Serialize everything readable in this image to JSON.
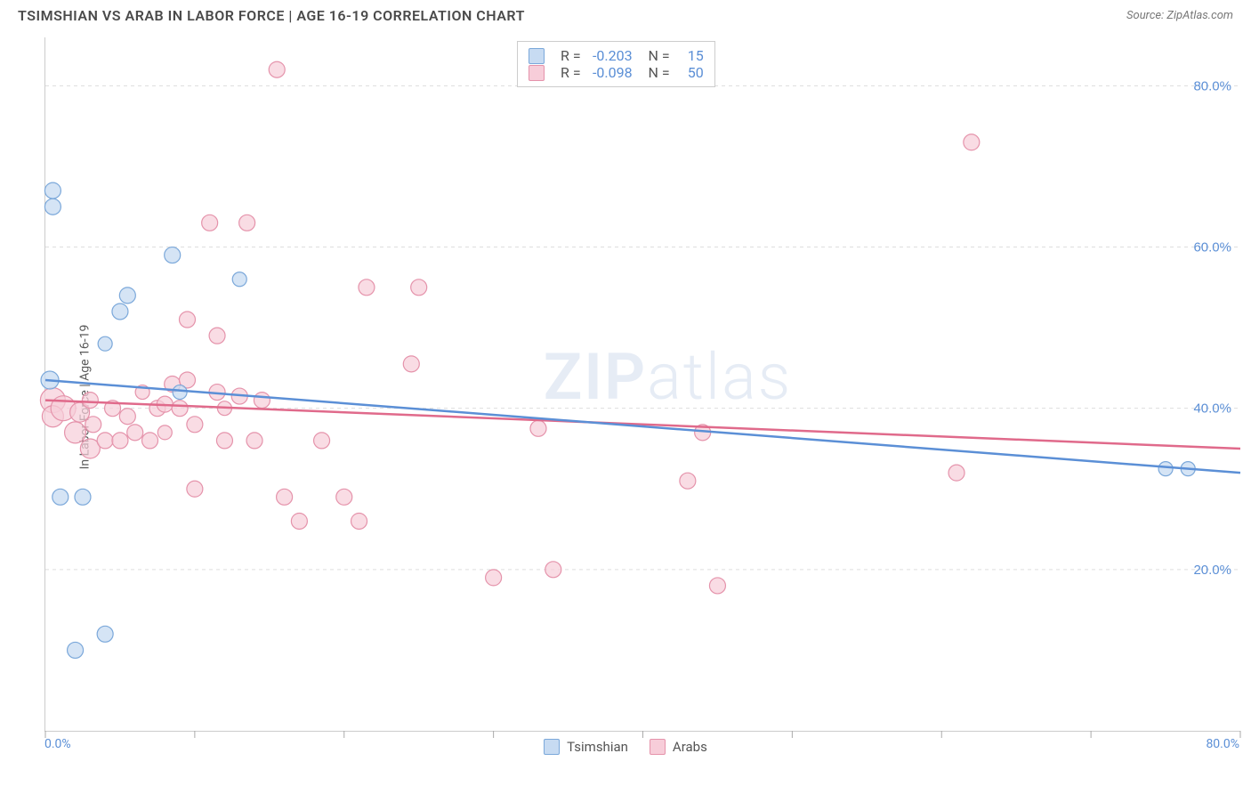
{
  "title": "TSIMSHIAN VS ARAB IN LABOR FORCE | AGE 16-19 CORRELATION CHART",
  "source": "Source: ZipAtlas.com",
  "ylabel": "In Labor Force | Age 16-19",
  "watermark": {
    "bold": "ZIP",
    "light": "atlas"
  },
  "chart": {
    "type": "scatter",
    "xlim": [
      0,
      80
    ],
    "ylim": [
      0,
      86
    ],
    "xticks": [
      0,
      10,
      20,
      30,
      40,
      50,
      60,
      70,
      80
    ],
    "xtick_labels": {
      "0": "0.0%",
      "80": "80.0%"
    },
    "yticks": [
      20,
      40,
      60,
      80
    ],
    "ytick_labels": [
      "20.0%",
      "40.0%",
      "60.0%",
      "80.0%"
    ],
    "grid_color": "#dddddd",
    "tick_color": "#aaaaaa",
    "axis_color": "#cccccc",
    "yaxis_label_color": "#5b8fd6",
    "xaxis_label_color": "#5b8fd6",
    "background_color": "#ffffff"
  },
  "series": {
    "tsimshian": {
      "label": "Tsimshian",
      "fill": "#c7dbf2",
      "stroke": "#7ba8da",
      "line_color": "#5b8fd6",
      "opacity": 0.75,
      "R": "-0.203",
      "N": "15",
      "points": [
        {
          "x": 0.5,
          "y": 67,
          "r": 9
        },
        {
          "x": 0.5,
          "y": 65,
          "r": 9
        },
        {
          "x": 0.3,
          "y": 43.5,
          "r": 10
        },
        {
          "x": 1.0,
          "y": 29,
          "r": 9
        },
        {
          "x": 2.5,
          "y": 29,
          "r": 9
        },
        {
          "x": 2.0,
          "y": 10,
          "r": 9
        },
        {
          "x": 4.0,
          "y": 12,
          "r": 9
        },
        {
          "x": 4.0,
          "y": 48,
          "r": 8
        },
        {
          "x": 5.0,
          "y": 52,
          "r": 9
        },
        {
          "x": 5.5,
          "y": 54,
          "r": 9
        },
        {
          "x": 8.5,
          "y": 59,
          "r": 9
        },
        {
          "x": 13.0,
          "y": 56,
          "r": 8
        },
        {
          "x": 9.0,
          "y": 42,
          "r": 8
        },
        {
          "x": 75.0,
          "y": 32.5,
          "r": 8
        },
        {
          "x": 76.5,
          "y": 32.5,
          "r": 8
        }
      ],
      "trend": {
        "x1": 0,
        "y1": 43.5,
        "x2": 80,
        "y2": 32
      }
    },
    "arabs": {
      "label": "Arabs",
      "fill": "#f7cdd9",
      "stroke": "#e593ab",
      "line_color": "#e06a8b",
      "opacity": 0.7,
      "R": "-0.098",
      "N": "50",
      "points": [
        {
          "x": 0.5,
          "y": 41,
          "r": 14
        },
        {
          "x": 0.5,
          "y": 39,
          "r": 12
        },
        {
          "x": 1.2,
          "y": 40,
          "r": 14
        },
        {
          "x": 2.0,
          "y": 37,
          "r": 12
        },
        {
          "x": 2.3,
          "y": 39.5,
          "r": 11
        },
        {
          "x": 3.0,
          "y": 41,
          "r": 9
        },
        {
          "x": 3.2,
          "y": 38,
          "r": 9
        },
        {
          "x": 3.0,
          "y": 35,
          "r": 11
        },
        {
          "x": 4.0,
          "y": 36,
          "r": 9
        },
        {
          "x": 4.5,
          "y": 40,
          "r": 9
        },
        {
          "x": 5.5,
          "y": 39,
          "r": 9
        },
        {
          "x": 5.0,
          "y": 36,
          "r": 9
        },
        {
          "x": 6.0,
          "y": 37,
          "r": 9
        },
        {
          "x": 6.5,
          "y": 42,
          "r": 8
        },
        {
          "x": 7.0,
          "y": 36,
          "r": 9
        },
        {
          "x": 7.5,
          "y": 40,
          "r": 9
        },
        {
          "x": 8.0,
          "y": 40.5,
          "r": 9
        },
        {
          "x": 8.5,
          "y": 43,
          "r": 9
        },
        {
          "x": 8.0,
          "y": 37,
          "r": 8
        },
        {
          "x": 9.0,
          "y": 40,
          "r": 9
        },
        {
          "x": 9.5,
          "y": 43.5,
          "r": 9
        },
        {
          "x": 10.0,
          "y": 38,
          "r": 9
        },
        {
          "x": 10.0,
          "y": 30,
          "r": 9
        },
        {
          "x": 9.5,
          "y": 51,
          "r": 9
        },
        {
          "x": 11.0,
          "y": 63,
          "r": 9
        },
        {
          "x": 11.5,
          "y": 42,
          "r": 9
        },
        {
          "x": 12.0,
          "y": 36,
          "r": 9
        },
        {
          "x": 12.0,
          "y": 40,
          "r": 8
        },
        {
          "x": 11.5,
          "y": 49,
          "r": 9
        },
        {
          "x": 13.5,
          "y": 63,
          "r": 9
        },
        {
          "x": 13.0,
          "y": 41.5,
          "r": 9
        },
        {
          "x": 14.0,
          "y": 36,
          "r": 9
        },
        {
          "x": 14.5,
          "y": 41,
          "r": 9
        },
        {
          "x": 15.5,
          "y": 82,
          "r": 9
        },
        {
          "x": 16.0,
          "y": 29,
          "r": 9
        },
        {
          "x": 17.0,
          "y": 26,
          "r": 9
        },
        {
          "x": 18.5,
          "y": 36,
          "r": 9
        },
        {
          "x": 20.0,
          "y": 29,
          "r": 9
        },
        {
          "x": 21.0,
          "y": 26,
          "r": 9
        },
        {
          "x": 21.5,
          "y": 55,
          "r": 9
        },
        {
          "x": 24.5,
          "y": 45.5,
          "r": 9
        },
        {
          "x": 25.0,
          "y": 55,
          "r": 9
        },
        {
          "x": 30.0,
          "y": 19,
          "r": 9
        },
        {
          "x": 33.0,
          "y": 37.5,
          "r": 9
        },
        {
          "x": 34.0,
          "y": 20,
          "r": 9
        },
        {
          "x": 43.0,
          "y": 31,
          "r": 9
        },
        {
          "x": 44.0,
          "y": 37,
          "r": 9
        },
        {
          "x": 45.0,
          "y": 18,
          "r": 9
        },
        {
          "x": 61.0,
          "y": 32,
          "r": 9
        },
        {
          "x": 62.0,
          "y": 73,
          "r": 9
        }
      ],
      "trend": {
        "x1": 0,
        "y1": 41,
        "x2": 80,
        "y2": 35
      }
    }
  },
  "legend_bottom": [
    {
      "key": "tsimshian"
    },
    {
      "key": "arabs"
    }
  ],
  "stats_box": {
    "rows": [
      {
        "series": "tsimshian"
      },
      {
        "series": "arabs"
      }
    ]
  }
}
